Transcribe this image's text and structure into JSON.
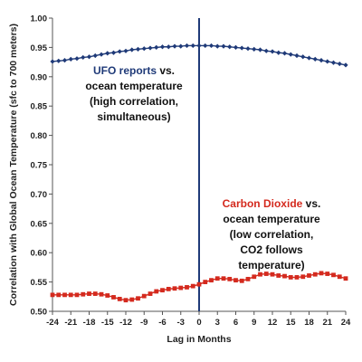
{
  "colors": {
    "ufo": "#1f3a78",
    "co2": "#d42a1e",
    "annotation_text": "#111111",
    "axis": "#555555",
    "divider": "#1f3a78"
  },
  "chart_data": {
    "type": "line",
    "title": "",
    "xlabel": "Lag in Months",
    "ylabel": "Correlation with Global Ocean Temperature (sfc to 700 meters)",
    "xlim": [
      -24,
      24
    ],
    "ylim": [
      0.5,
      1.0
    ],
    "x_ticks": [
      -24,
      -21,
      -18,
      -15,
      -12,
      -9,
      -6,
      -3,
      0,
      3,
      6,
      9,
      12,
      15,
      18,
      21,
      24
    ],
    "y_ticks": [
      0.5,
      0.55,
      0.6,
      0.65,
      0.7,
      0.75,
      0.8,
      0.85,
      0.9,
      0.95,
      1.0
    ],
    "y_tick_labels": [
      "0.50",
      "0.55",
      "0.60",
      "0.65",
      "0.70",
      "0.75",
      "0.80",
      "0.85",
      "0.90",
      "0.95",
      "1.00"
    ],
    "grid": false,
    "vertical_reference_line_x": 0,
    "x": [
      -24,
      -23,
      -22,
      -21,
      -20,
      -19,
      -18,
      -17,
      -16,
      -15,
      -14,
      -13,
      -12,
      -11,
      -10,
      -9,
      -8,
      -7,
      -6,
      -5,
      -4,
      -3,
      -2,
      -1,
      0,
      1,
      2,
      3,
      4,
      5,
      6,
      7,
      8,
      9,
      10,
      11,
      12,
      13,
      14,
      15,
      16,
      17,
      18,
      19,
      20,
      21,
      22,
      23,
      24
    ],
    "series": [
      {
        "key": "ufo",
        "marker": "diamond",
        "values": [
          0.926,
          0.927,
          0.928,
          0.93,
          0.931,
          0.933,
          0.934,
          0.936,
          0.938,
          0.94,
          0.941,
          0.943,
          0.944,
          0.946,
          0.947,
          0.948,
          0.949,
          0.95,
          0.951,
          0.951,
          0.952,
          0.952,
          0.953,
          0.953,
          0.953,
          0.953,
          0.953,
          0.952,
          0.952,
          0.951,
          0.95,
          0.949,
          0.948,
          0.947,
          0.946,
          0.944,
          0.943,
          0.941,
          0.94,
          0.938,
          0.936,
          0.934,
          0.932,
          0.93,
          0.928,
          0.926,
          0.924,
          0.922,
          0.92
        ]
      },
      {
        "key": "co2",
        "marker": "square",
        "values": [
          0.528,
          0.528,
          0.528,
          0.528,
          0.528,
          0.529,
          0.53,
          0.53,
          0.529,
          0.527,
          0.524,
          0.521,
          0.519,
          0.52,
          0.522,
          0.526,
          0.53,
          0.534,
          0.536,
          0.538,
          0.539,
          0.54,
          0.541,
          0.543,
          0.546,
          0.55,
          0.553,
          0.556,
          0.556,
          0.555,
          0.553,
          0.552,
          0.555,
          0.559,
          0.563,
          0.564,
          0.563,
          0.561,
          0.56,
          0.558,
          0.558,
          0.559,
          0.561,
          0.563,
          0.565,
          0.564,
          0.562,
          0.559,
          0.556
        ]
      }
    ],
    "annotations": {
      "ufo": {
        "lines": [
          [
            {
              "text": "UFO reports",
              "color": "#1f3a78"
            },
            {
              "text": " vs.",
              "color": "#111111"
            }
          ],
          [
            {
              "text": "ocean temperature",
              "color": "#111111"
            }
          ],
          [
            {
              "text": "(high correlation,",
              "color": "#111111"
            }
          ],
          [
            {
              "text": "simultaneous)",
              "color": "#111111"
            }
          ]
        ]
      },
      "co2": {
        "lines": [
          [
            {
              "text": "Carbon Dioxide",
              "color": "#d42a1e"
            },
            {
              "text": " vs.",
              "color": "#111111"
            }
          ],
          [
            {
              "text": "ocean temperature",
              "color": "#111111"
            }
          ],
          [
            {
              "text": "(low correlation,",
              "color": "#111111"
            }
          ],
          [
            {
              "text": "CO2 follows",
              "color": "#111111"
            }
          ],
          [
            {
              "text": "temperature)",
              "color": "#111111"
            }
          ]
        ]
      }
    }
  }
}
